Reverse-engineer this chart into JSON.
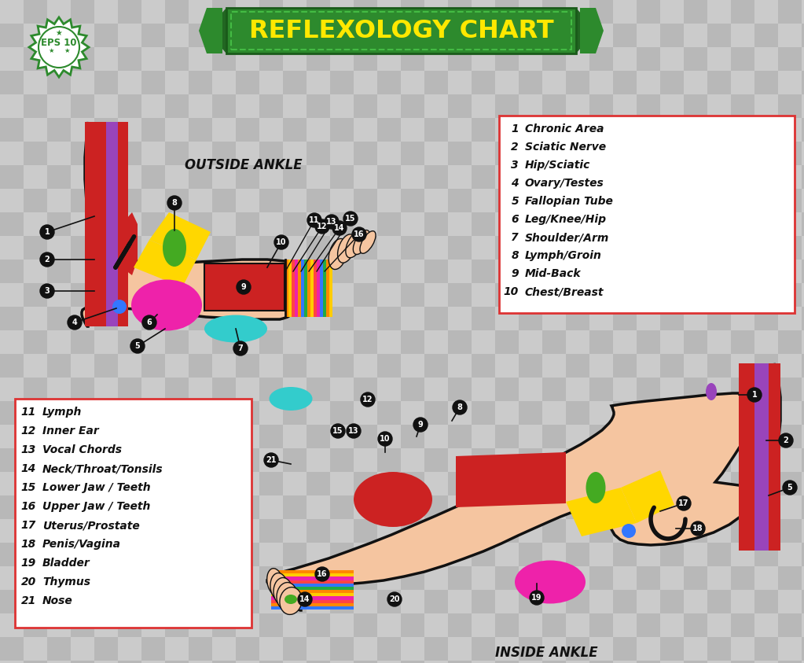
{
  "title": "REFLEXOLOGY CHART",
  "title_color": "#FFE800",
  "title_bg_color": "#2D8A2D",
  "checker_size": 30,
  "legend1_items": [
    [
      1,
      "Chronic Area"
    ],
    [
      2,
      "Sciatic Nerve"
    ],
    [
      3,
      "Hip/Sciatic"
    ],
    [
      4,
      "Ovary/Testes"
    ],
    [
      5,
      "Fallopian Tube"
    ],
    [
      6,
      "Leg/Knee/Hip"
    ],
    [
      7,
      "Shoulder/Arm"
    ],
    [
      8,
      "Lymph/Groin"
    ],
    [
      9,
      "Mid-Back"
    ],
    [
      10,
      "Chest/Breast"
    ]
  ],
  "legend2_items": [
    [
      11,
      "Lymph"
    ],
    [
      12,
      "Inner Ear"
    ],
    [
      13,
      "Vocal Chords"
    ],
    [
      14,
      "Neck/Throat/Tonsils"
    ],
    [
      15,
      "Lower Jaw / Teeth"
    ],
    [
      16,
      "Upper Jaw / Teeth"
    ],
    [
      17,
      "Uterus/Prostate"
    ],
    [
      18,
      "Penis/Vagina"
    ],
    [
      19,
      "Bladder"
    ],
    [
      20,
      "Thymus"
    ],
    [
      21,
      "Nose"
    ]
  ],
  "outside_ankle_label": "OUTSIDE ANKLE",
  "inside_ankle_label": "INSIDE ANKLE",
  "skin_color": "#F5C5A0",
  "dot_color": "#111111"
}
